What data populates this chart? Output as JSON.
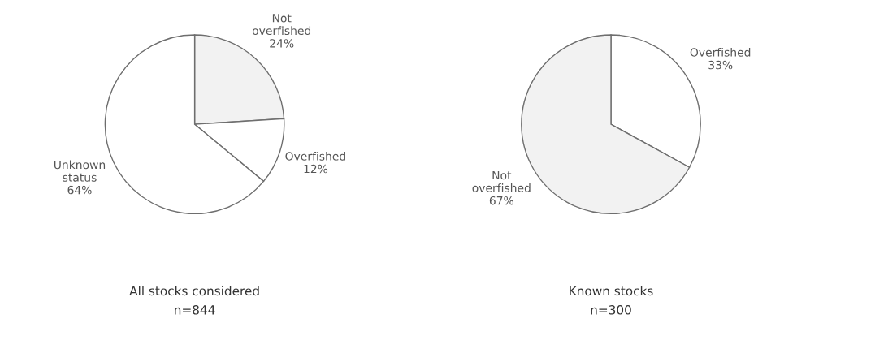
{
  "chart_data": [
    {
      "type": "pie",
      "title": "All stocks considered",
      "subtitle": "n=844",
      "categories": [
        "Not overfished",
        "Overfished",
        "Unknown status"
      ],
      "values": [
        24,
        12,
        64
      ],
      "value_labels": [
        "24%",
        "12%",
        "64%"
      ],
      "colors": [
        "#f2f2f2",
        "#ffffff",
        "#ffffff"
      ]
    },
    {
      "type": "pie",
      "title": "Known stocks",
      "subtitle": "n=300",
      "categories": [
        "Overfished",
        "Not overfished"
      ],
      "values": [
        33,
        67
      ],
      "value_labels": [
        "33%",
        "67%"
      ],
      "colors": [
        "#ffffff",
        "#f2f2f2"
      ]
    }
  ]
}
